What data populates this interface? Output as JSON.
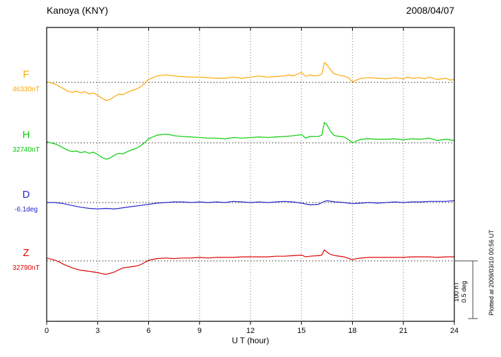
{
  "header": {
    "title": "Kanoya (KNY)",
    "date": "2008/04/07"
  },
  "side_notes": {
    "scale_nt": "100 nT",
    "scale_deg": "0.5 deg",
    "plotted_at": "Plotted at 2009/03/10 00:56 UT"
  },
  "chart_data": {
    "type": "line",
    "title": "Kanoya (KNY)",
    "date": "2008/04/07",
    "xlabel": "U T (hour)",
    "xlim": [
      0,
      24
    ],
    "x_ticks": [
      0,
      3,
      6,
      9,
      12,
      15,
      18,
      21,
      24
    ],
    "grid": {
      "vertical_dotted_at": [
        3,
        6,
        9,
        12,
        15,
        18,
        21
      ],
      "horizontal_dotted_baselines": true
    },
    "scale_bar": {
      "nt": 100,
      "deg": 0.5
    },
    "legend_position": "left",
    "series": [
      {
        "name": "F",
        "baseline_label": "46330nT",
        "baseline_value": 46330,
        "unit": "nT",
        "color": "#FFA500",
        "points": [
          [
            0,
            1
          ],
          [
            0.25,
            -1
          ],
          [
            0.5,
            -3
          ],
          [
            0.75,
            -7
          ],
          [
            1,
            -11
          ],
          [
            1.25,
            -15
          ],
          [
            1.5,
            -17
          ],
          [
            1.75,
            -15
          ],
          [
            2,
            -18
          ],
          [
            2.25,
            -16
          ],
          [
            2.5,
            -20
          ],
          [
            2.75,
            -18
          ],
          [
            3,
            -22
          ],
          [
            3.25,
            -27
          ],
          [
            3.5,
            -31
          ],
          [
            3.75,
            -29
          ],
          [
            4,
            -24
          ],
          [
            4.25,
            -20
          ],
          [
            4.5,
            -21
          ],
          [
            4.75,
            -17
          ],
          [
            5,
            -14
          ],
          [
            5.25,
            -12
          ],
          [
            5.5,
            -8
          ],
          [
            5.75,
            -2
          ],
          [
            6,
            5
          ],
          [
            6.25,
            8
          ],
          [
            6.5,
            11
          ],
          [
            6.75,
            12
          ],
          [
            7,
            13
          ],
          [
            7.25,
            12
          ],
          [
            7.5,
            11
          ],
          [
            8,
            10
          ],
          [
            8.5,
            9
          ],
          [
            9,
            9
          ],
          [
            9.5,
            8
          ],
          [
            10,
            7
          ],
          [
            10.5,
            7
          ],
          [
            11,
            9
          ],
          [
            11.5,
            7
          ],
          [
            12,
            9
          ],
          [
            12.5,
            11
          ],
          [
            13,
            9
          ],
          [
            13.5,
            10
          ],
          [
            14,
            11
          ],
          [
            14.25,
            13
          ],
          [
            14.5,
            11
          ],
          [
            14.75,
            14
          ],
          [
            15,
            17
          ],
          [
            15.25,
            10
          ],
          [
            15.5,
            13
          ],
          [
            15.75,
            11
          ],
          [
            16,
            12
          ],
          [
            16.2,
            14
          ],
          [
            16.35,
            34
          ],
          [
            16.5,
            30
          ],
          [
            16.7,
            22
          ],
          [
            16.9,
            15
          ],
          [
            17,
            14
          ],
          [
            17.25,
            12
          ],
          [
            17.5,
            11
          ],
          [
            17.75,
            8
          ],
          [
            18,
            1
          ],
          [
            18.25,
            4
          ],
          [
            18.5,
            7
          ],
          [
            19,
            8
          ],
          [
            19.5,
            7
          ],
          [
            20,
            6
          ],
          [
            20.5,
            8
          ],
          [
            21,
            6
          ],
          [
            21.25,
            9
          ],
          [
            21.5,
            7
          ],
          [
            22,
            8
          ],
          [
            22.25,
            6
          ],
          [
            22.5,
            9
          ],
          [
            23,
            5
          ],
          [
            23.5,
            7
          ],
          [
            23.75,
            4
          ],
          [
            24,
            5
          ]
        ]
      },
      {
        "name": "H",
        "baseline_label": "32740nT",
        "baseline_value": 32740,
        "unit": "nT",
        "color": "#00CC00",
        "points": [
          [
            0,
            2
          ],
          [
            0.25,
            0
          ],
          [
            0.5,
            -2
          ],
          [
            0.75,
            -5
          ],
          [
            1,
            -9
          ],
          [
            1.25,
            -13
          ],
          [
            1.5,
            -15
          ],
          [
            1.75,
            -14
          ],
          [
            2,
            -17
          ],
          [
            2.25,
            -15
          ],
          [
            2.5,
            -18
          ],
          [
            2.75,
            -16
          ],
          [
            3,
            -20
          ],
          [
            3.25,
            -25
          ],
          [
            3.5,
            -28
          ],
          [
            3.75,
            -26
          ],
          [
            4,
            -21
          ],
          [
            4.25,
            -18
          ],
          [
            4.5,
            -19
          ],
          [
            4.75,
            -15
          ],
          [
            5,
            -12
          ],
          [
            5.25,
            -10
          ],
          [
            5.5,
            -6
          ],
          [
            5.75,
            0
          ],
          [
            6,
            7
          ],
          [
            6.25,
            10
          ],
          [
            6.5,
            13
          ],
          [
            6.75,
            14
          ],
          [
            7,
            15
          ],
          [
            7.25,
            14
          ],
          [
            7.5,
            12
          ],
          [
            8,
            11
          ],
          [
            8.5,
            10
          ],
          [
            9,
            9
          ],
          [
            9.5,
            8
          ],
          [
            10,
            8
          ],
          [
            10.5,
            7
          ],
          [
            11,
            9
          ],
          [
            11.5,
            8
          ],
          [
            12,
            9
          ],
          [
            12.5,
            10
          ],
          [
            13,
            9
          ],
          [
            13.5,
            10
          ],
          [
            14,
            11
          ],
          [
            14.5,
            12
          ],
          [
            15,
            14
          ],
          [
            15.25,
            8
          ],
          [
            15.5,
            11
          ],
          [
            16,
            11
          ],
          [
            16.2,
            13
          ],
          [
            16.35,
            35
          ],
          [
            16.5,
            31
          ],
          [
            16.7,
            20
          ],
          [
            16.9,
            13
          ],
          [
            17,
            12
          ],
          [
            17.5,
            10
          ],
          [
            17.75,
            6
          ],
          [
            18,
            0
          ],
          [
            18.25,
            3
          ],
          [
            18.5,
            6
          ],
          [
            19,
            7
          ],
          [
            19.5,
            6
          ],
          [
            20,
            6
          ],
          [
            20.5,
            7
          ],
          [
            21,
            5
          ],
          [
            21.5,
            7
          ],
          [
            22,
            6
          ],
          [
            22.5,
            8
          ],
          [
            23,
            4
          ],
          [
            23.5,
            6
          ],
          [
            24,
            4
          ]
        ]
      },
      {
        "name": "D",
        "baseline_label": "-6.1deg",
        "baseline_value": -6.1,
        "unit": "deg",
        "color": "#2222CC",
        "points": [
          [
            0,
            0
          ],
          [
            0.5,
            0
          ],
          [
            1,
            -0.01
          ],
          [
            1.5,
            -0.025
          ],
          [
            2,
            -0.04
          ],
          [
            2.5,
            -0.05
          ],
          [
            3,
            -0.055
          ],
          [
            3.5,
            -0.05
          ],
          [
            4,
            -0.055
          ],
          [
            4.5,
            -0.045
          ],
          [
            5,
            -0.035
          ],
          [
            5.5,
            -0.025
          ],
          [
            6,
            -0.015
          ],
          [
            6.5,
            -0.005
          ],
          [
            7,
            0
          ],
          [
            7.5,
            0.005
          ],
          [
            8,
            0.005
          ],
          [
            8.5,
            0
          ],
          [
            9,
            0.005
          ],
          [
            9.5,
            0
          ],
          [
            10,
            0.005
          ],
          [
            10.5,
            0
          ],
          [
            11,
            0.01
          ],
          [
            11.5,
            0.005
          ],
          [
            12,
            0
          ],
          [
            12.5,
            0.005
          ],
          [
            13,
            0
          ],
          [
            13.5,
            0.005
          ],
          [
            14,
            0.01
          ],
          [
            14.5,
            0.005
          ],
          [
            15,
            -0.005
          ],
          [
            15.5,
            -0.02
          ],
          [
            16,
            -0.015
          ],
          [
            16.35,
            0.01
          ],
          [
            16.5,
            0.015
          ],
          [
            17,
            0.005
          ],
          [
            17.5,
            0
          ],
          [
            18,
            -0.01
          ],
          [
            18.5,
            -0.005
          ],
          [
            19,
            0
          ],
          [
            19.5,
            -0.005
          ],
          [
            20,
            0
          ],
          [
            20.5,
            0.005
          ],
          [
            21,
            0
          ],
          [
            21.5,
            0.005
          ],
          [
            22,
            0.005
          ],
          [
            22.5,
            0.01
          ],
          [
            23,
            0.01
          ],
          [
            23.5,
            0.01
          ],
          [
            24,
            0.015
          ]
        ]
      },
      {
        "name": "Z",
        "baseline_label": "32790nT",
        "baseline_value": 32790,
        "unit": "nT",
        "color": "#DD0000",
        "points": [
          [
            0,
            5
          ],
          [
            0.25,
            3
          ],
          [
            0.5,
            1
          ],
          [
            0.75,
            -2
          ],
          [
            1,
            -6
          ],
          [
            1.25,
            -9
          ],
          [
            1.5,
            -12
          ],
          [
            1.75,
            -14
          ],
          [
            2,
            -16
          ],
          [
            2.25,
            -17
          ],
          [
            2.5,
            -18
          ],
          [
            2.75,
            -19
          ],
          [
            3,
            -20
          ],
          [
            3.25,
            -22
          ],
          [
            3.5,
            -23
          ],
          [
            3.75,
            -21
          ],
          [
            4,
            -19
          ],
          [
            4.25,
            -15
          ],
          [
            4.5,
            -12
          ],
          [
            4.75,
            -11
          ],
          [
            5,
            -10
          ],
          [
            5.25,
            -9
          ],
          [
            5.5,
            -7
          ],
          [
            5.75,
            -3
          ],
          [
            6,
            1
          ],
          [
            6.5,
            4
          ],
          [
            7,
            5
          ],
          [
            7.5,
            4
          ],
          [
            8,
            5
          ],
          [
            8.5,
            5
          ],
          [
            9,
            6
          ],
          [
            9.5,
            5
          ],
          [
            10,
            6
          ],
          [
            10.5,
            6
          ],
          [
            11,
            6
          ],
          [
            11.5,
            7
          ],
          [
            12,
            7
          ],
          [
            12.5,
            7
          ],
          [
            13,
            7
          ],
          [
            13.5,
            8
          ],
          [
            14,
            8
          ],
          [
            14.5,
            9
          ],
          [
            15,
            10
          ],
          [
            15.25,
            7
          ],
          [
            15.5,
            8
          ],
          [
            16,
            9
          ],
          [
            16.2,
            10
          ],
          [
            16.35,
            19
          ],
          [
            16.5,
            15
          ],
          [
            16.7,
            11
          ],
          [
            17,
            9
          ],
          [
            17.5,
            7
          ],
          [
            18,
            2
          ],
          [
            18.25,
            4
          ],
          [
            18.5,
            5
          ],
          [
            19,
            6
          ],
          [
            19.5,
            6
          ],
          [
            20,
            6
          ],
          [
            20.5,
            6
          ],
          [
            21,
            6
          ],
          [
            21.5,
            7
          ],
          [
            22,
            7
          ],
          [
            22.5,
            7
          ],
          [
            23,
            6
          ],
          [
            23.5,
            7
          ],
          [
            24,
            7
          ]
        ]
      }
    ]
  }
}
